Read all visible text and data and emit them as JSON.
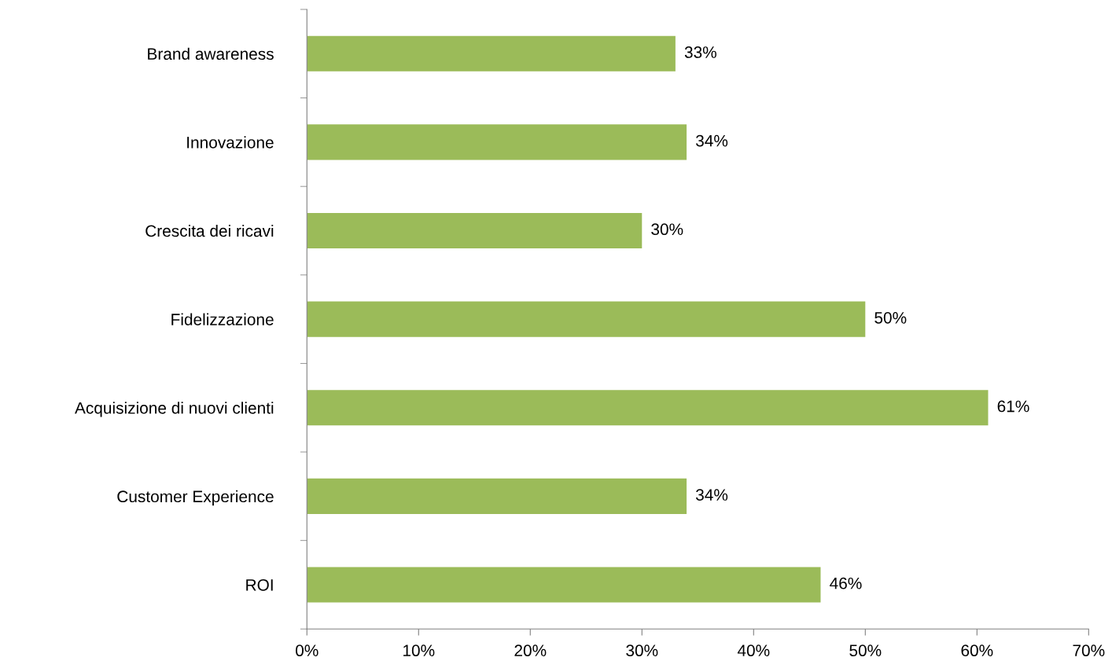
{
  "chart_data": {
    "type": "bar",
    "orientation": "horizontal",
    "categories": [
      "Brand awareness",
      "Innovazione",
      "Crescita dei ricavi",
      "Fidelizzazione",
      "Acquisizione di nuovi clienti",
      "Customer Experience",
      "ROI"
    ],
    "values": [
      33,
      34,
      30,
      50,
      61,
      34,
      46
    ],
    "value_labels": [
      "33%",
      "34%",
      "30%",
      "50%",
      "61%",
      "34%",
      "46%"
    ],
    "color": "#9bbb59",
    "xlim": [
      0,
      70
    ],
    "xticks": [
      {
        "value": 0,
        "label": "0%"
      },
      {
        "value": 10,
        "label": "10%"
      },
      {
        "value": 20,
        "label": "20%"
      },
      {
        "value": 30,
        "label": "30%"
      },
      {
        "value": 40,
        "label": "40%"
      },
      {
        "value": 50,
        "label": "50%"
      },
      {
        "value": 60,
        "label": "60%"
      },
      {
        "value": 70,
        "label": "70%"
      }
    ],
    "grid": false,
    "legend": false
  }
}
